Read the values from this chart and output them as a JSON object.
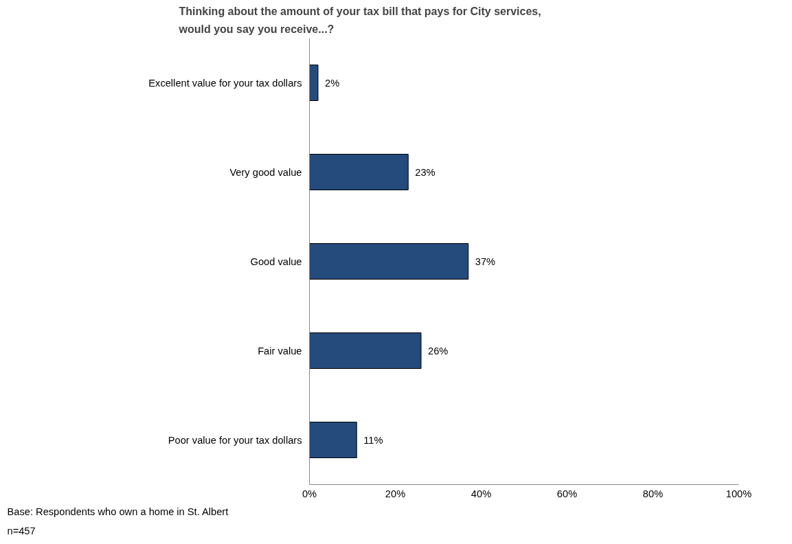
{
  "chart_data": {
    "type": "bar",
    "orientation": "horizontal",
    "title": "Thinking about the amount of your tax bill that pays for City services,\nwould you say you receive...?",
    "categories": [
      "Excellent value for your tax dollars",
      "Very good value",
      "Good value",
      "Fair value",
      "Poor value for your tax dollars"
    ],
    "values": [
      2,
      23,
      37,
      26,
      11
    ],
    "color": "#254a7c",
    "value_labels": [
      "2%",
      "23%",
      "37%",
      "26%",
      "11%"
    ],
    "xlim": [
      0,
      100
    ],
    "xticks": [
      {
        "value": 0,
        "label": "0%"
      },
      {
        "value": 20,
        "label": "20%"
      },
      {
        "value": 40,
        "label": "40%"
      },
      {
        "value": 60,
        "label": "60%"
      },
      {
        "value": 80,
        "label": "80%"
      },
      {
        "value": 100,
        "label": "100%"
      }
    ],
    "grid": false,
    "annotations": [
      "Base: Respondents who own a home in St. Albert",
      "n=457"
    ]
  }
}
